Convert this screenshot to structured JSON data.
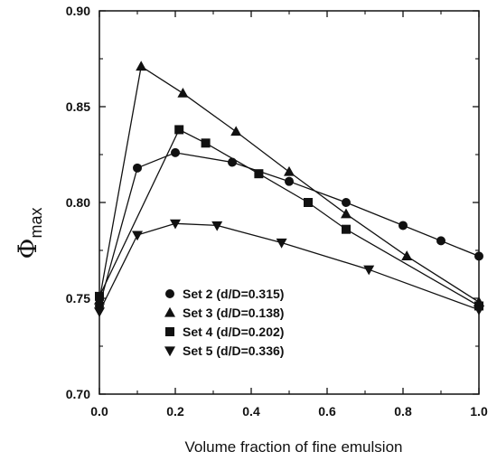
{
  "chart_data": {
    "type": "line",
    "title": "",
    "xlabel": "Volume fraction of fine emulsion",
    "ylabel_main": "Φ",
    "ylabel_sub": "max",
    "xlim": [
      0.0,
      1.0
    ],
    "ylim": [
      0.7,
      0.9
    ],
    "xticks": [
      "0.0",
      "0.2",
      "0.4",
      "0.6",
      "0.8",
      "1.0"
    ],
    "yticks": [
      "0.70",
      "0.75",
      "0.80",
      "0.85",
      "0.90"
    ],
    "grid": false,
    "legend_position": "bottom-left",
    "series": [
      {
        "name": "Set 2 (d/D=0.315)",
        "marker": "circle",
        "x": [
          0.0,
          0.1,
          0.2,
          0.35,
          0.5,
          0.65,
          0.8,
          0.9,
          1.0
        ],
        "y": [
          0.746,
          0.818,
          0.826,
          0.821,
          0.811,
          0.8,
          0.788,
          0.78,
          0.772
        ]
      },
      {
        "name": "Set 3 (d/D=0.138)",
        "marker": "triangle-up",
        "x": [
          0.0,
          0.11,
          0.22,
          0.36,
          0.5,
          0.65,
          0.81,
          1.0
        ],
        "y": [
          0.749,
          0.871,
          0.857,
          0.837,
          0.816,
          0.794,
          0.772,
          0.748
        ]
      },
      {
        "name": "Set 4 (d/D=0.202)",
        "marker": "square",
        "x": [
          0.0,
          0.21,
          0.28,
          0.42,
          0.55,
          0.65,
          1.0
        ],
        "y": [
          0.751,
          0.838,
          0.831,
          0.815,
          0.8,
          0.786,
          0.746
        ]
      },
      {
        "name": "Set 5 (d/D=0.336)",
        "marker": "triangle-down",
        "x": [
          0.0,
          0.1,
          0.2,
          0.31,
          0.48,
          0.71,
          1.0
        ],
        "y": [
          0.743,
          0.783,
          0.789,
          0.788,
          0.779,
          0.765,
          0.744
        ]
      }
    ]
  }
}
